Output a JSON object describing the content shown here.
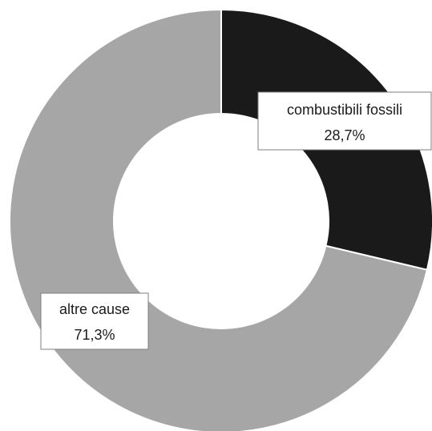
{
  "chart_data": {
    "type": "pie",
    "donut": true,
    "title": "",
    "slices": [
      {
        "label": "combustibili fossili",
        "value": 28.7,
        "value_label": "28,7%",
        "color": "#1a1a1a"
      },
      {
        "label": "altre cause",
        "value": 71.3,
        "value_label": "71,3%",
        "color": "#a6a6a6"
      }
    ],
    "start_angle": "12 o'clock",
    "direction": "clockwise",
    "legend": "none"
  }
}
